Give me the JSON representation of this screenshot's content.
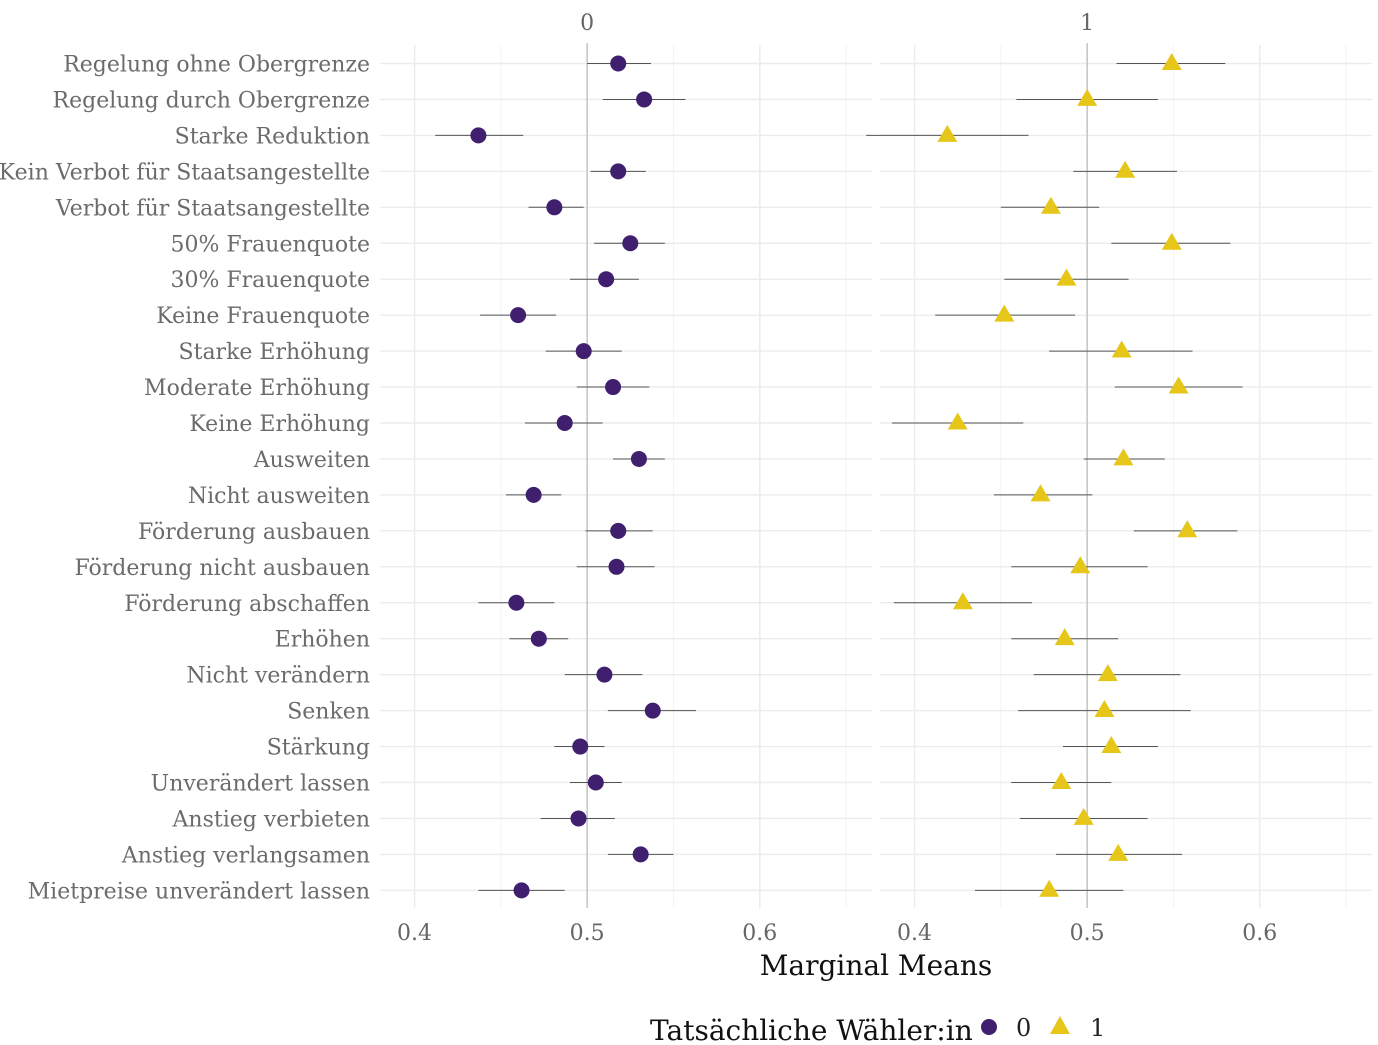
{
  "chart_data": {
    "type": "scatter",
    "xlabel": "Marginal Means",
    "xlim": [
      0.38,
      0.665
    ],
    "xticks": [
      "0.4",
      "0.5",
      "0.6"
    ],
    "xtick_values": [
      0.4,
      0.5,
      0.6
    ],
    "reference_line": 0.5,
    "facets": [
      "0",
      "1"
    ],
    "categories": [
      "Regelung ohne Obergrenze",
      "Regelung durch Obergrenze",
      "Starke Reduktion",
      "Kein Verbot für Staatsangestellte",
      "Verbot für Staatsangestellte",
      "50% Frauenquote",
      "30% Frauenquote",
      "Keine Frauenquote",
      "Starke Erhöhung",
      "Moderate Erhöhung",
      "Keine Erhöhung",
      "Ausweiten",
      "Nicht ausweiten",
      "Förderung ausbauen",
      "Förderung nicht ausbauen",
      "Förderung abschaffen",
      "Erhöhen",
      "Nicht verändern",
      "Senken",
      "Stärkung",
      "Unverändert lassen",
      "Anstieg verbieten",
      "Anstieg verlangsamen",
      "Mietpreise unverändert lassen"
    ],
    "series": [
      {
        "name": "0",
        "facet": "0",
        "color": "#3f1f6e",
        "shape": "circle",
        "estimate": [
          0.518,
          0.533,
          0.437,
          0.518,
          0.481,
          0.525,
          0.511,
          0.46,
          0.498,
          0.515,
          0.487,
          0.53,
          0.469,
          0.518,
          0.517,
          0.459,
          0.472,
          0.51,
          0.538,
          0.496,
          0.505,
          0.495,
          0.531,
          0.462
        ],
        "lower": [
          0.5,
          0.509,
          0.412,
          0.502,
          0.466,
          0.504,
          0.49,
          0.438,
          0.476,
          0.494,
          0.464,
          0.515,
          0.453,
          0.499,
          0.494,
          0.437,
          0.455,
          0.487,
          0.512,
          0.481,
          0.49,
          0.473,
          0.512,
          0.437
        ],
        "upper": [
          0.537,
          0.557,
          0.463,
          0.534,
          0.498,
          0.545,
          0.53,
          0.482,
          0.52,
          0.536,
          0.509,
          0.545,
          0.485,
          0.538,
          0.539,
          0.481,
          0.489,
          0.532,
          0.563,
          0.51,
          0.52,
          0.516,
          0.55,
          0.487
        ]
      },
      {
        "name": "1",
        "facet": "1",
        "color": "#e6c619",
        "shape": "triangle",
        "estimate": [
          0.549,
          0.5,
          0.419,
          0.522,
          0.479,
          0.549,
          0.488,
          0.452,
          0.52,
          0.553,
          0.425,
          0.521,
          0.473,
          0.558,
          0.496,
          0.428,
          0.487,
          0.512,
          0.51,
          0.514,
          0.485,
          0.498,
          0.518,
          0.478
        ],
        "lower": [
          0.517,
          0.459,
          0.372,
          0.492,
          0.45,
          0.514,
          0.452,
          0.412,
          0.478,
          0.516,
          0.387,
          0.498,
          0.446,
          0.527,
          0.456,
          0.388,
          0.456,
          0.469,
          0.46,
          0.486,
          0.456,
          0.461,
          0.482,
          0.435
        ],
        "upper": [
          0.58,
          0.541,
          0.466,
          0.552,
          0.507,
          0.583,
          0.524,
          0.493,
          0.561,
          0.59,
          0.463,
          0.545,
          0.503,
          0.587,
          0.535,
          0.468,
          0.518,
          0.554,
          0.56,
          0.541,
          0.514,
          0.535,
          0.555,
          0.521
        ]
      }
    ],
    "legend": {
      "title": "Tatsächliche Wähler:in",
      "position": "bottom",
      "entries": [
        "0",
        "1"
      ]
    },
    "grid": true
  }
}
